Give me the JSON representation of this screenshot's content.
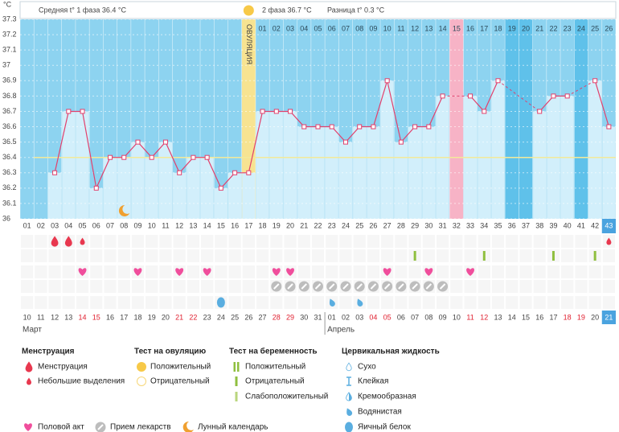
{
  "header": {
    "phase1": "Средняя t° 1 фаза 36.4 °C",
    "phase2": "2 фаза 36.7 °C",
    "difference": "Разница t° 0.3 °C"
  },
  "chart_data": {
    "type": "line",
    "unit": "°C",
    "ovulation_label": "ОВУЛЯЦИЯ",
    "ovulation_day": 17,
    "highlight_day": 32,
    "categories": [
      "01",
      "02",
      "03",
      "04",
      "05",
      "06",
      "07",
      "08",
      "09",
      "10",
      "11",
      "12",
      "13",
      "14",
      "15",
      "16",
      "17",
      "18",
      "19",
      "20",
      "21",
      "22",
      "23",
      "24",
      "25",
      "26",
      "27",
      "28",
      "29",
      "30",
      "31",
      "32",
      "33",
      "34",
      "35",
      "36",
      "37",
      "38",
      "39",
      "40",
      "41",
      "42",
      "43"
    ],
    "top_labels": [
      null,
      null,
      null,
      null,
      null,
      null,
      null,
      null,
      null,
      null,
      null,
      null,
      null,
      null,
      null,
      null,
      null,
      "01",
      "02",
      "03",
      "04",
      "05",
      "06",
      "07",
      "08",
      "09",
      "10",
      "11",
      "12",
      "13",
      "14",
      "15",
      "16",
      "17",
      "18",
      "19",
      "20",
      "21",
      "22",
      "23",
      "24",
      "25",
      "26"
    ],
    "values": [
      null,
      null,
      36.3,
      36.7,
      36.7,
      36.2,
      36.4,
      36.4,
      36.5,
      36.4,
      36.5,
      36.3,
      36.4,
      36.4,
      36.2,
      36.3,
      36.3,
      36.7,
      36.7,
      36.7,
      36.6,
      36.6,
      36.6,
      36.5,
      36.6,
      36.6,
      36.9,
      36.5,
      36.6,
      36.6,
      36.8,
      null,
      36.8,
      36.7,
      36.9,
      null,
      null,
      36.7,
      36.8,
      36.8,
      null,
      36.9,
      36.6
    ],
    "ylim": [
      36,
      37.3
    ],
    "yticks": [
      36,
      36.1,
      36.2,
      36.3,
      36.4,
      36.5,
      36.6,
      36.7,
      36.8,
      36.9,
      37,
      37.1,
      37.2,
      37.3
    ],
    "coverline": 36.4,
    "grid": true,
    "dates": [
      "10",
      "11",
      "12",
      "13",
      "14",
      "15",
      "16",
      "17",
      "18",
      "19",
      "20",
      "21",
      "22",
      "23",
      "24",
      "25",
      "26",
      "27",
      "28",
      "29",
      "30",
      "31",
      "01",
      "02",
      "03",
      "04",
      "05",
      "06",
      "07",
      "08",
      "09",
      "10",
      "11",
      "12",
      "13",
      "14",
      "15",
      "16",
      "17",
      "18",
      "19",
      "20",
      "21"
    ],
    "weekend": [
      false,
      false,
      false,
      false,
      true,
      true,
      false,
      false,
      false,
      false,
      false,
      true,
      true,
      false,
      false,
      false,
      false,
      false,
      true,
      true,
      false,
      false,
      false,
      false,
      false,
      true,
      true,
      false,
      false,
      false,
      false,
      false,
      true,
      true,
      false,
      false,
      false,
      false,
      false,
      true,
      true,
      false,
      false
    ],
    "months": [
      {
        "label": "Март",
        "day": 1
      },
      {
        "label": "Апрель",
        "day": 23
      }
    ],
    "moon_day": 8,
    "symbol_rows": [
      [
        {
          "day": 3,
          "kind": "menstruation"
        },
        {
          "day": 4,
          "kind": "menstruation"
        },
        {
          "day": 5,
          "kind": "spotting"
        },
        {
          "day": 43,
          "kind": "spotting"
        }
      ],
      [
        {
          "day": 29,
          "kind": "preg-neg"
        },
        {
          "day": 34,
          "kind": "preg-neg"
        },
        {
          "day": 39,
          "kind": "preg-neg"
        },
        {
          "day": 42,
          "kind": "preg-neg"
        }
      ],
      [
        {
          "day": 5,
          "kind": "sex"
        },
        {
          "day": 9,
          "kind": "sex"
        },
        {
          "day": 12,
          "kind": "sex"
        },
        {
          "day": 14,
          "kind": "sex"
        },
        {
          "day": 19,
          "kind": "sex"
        },
        {
          "day": 20,
          "kind": "sex"
        },
        {
          "day": 27,
          "kind": "sex"
        },
        {
          "day": 30,
          "kind": "sex"
        },
        {
          "day": 33,
          "kind": "sex"
        }
      ],
      [
        {
          "day": 19,
          "kind": "pill"
        },
        {
          "day": 20,
          "kind": "pill"
        },
        {
          "day": 21,
          "kind": "pill"
        },
        {
          "day": 22,
          "kind": "pill"
        },
        {
          "day": 23,
          "kind": "pill"
        },
        {
          "day": 24,
          "kind": "pill"
        },
        {
          "day": 25,
          "kind": "pill"
        },
        {
          "day": 26,
          "kind": "pill"
        },
        {
          "day": 27,
          "kind": "pill"
        },
        {
          "day": 28,
          "kind": "pill"
        },
        {
          "day": 29,
          "kind": "pill"
        },
        {
          "day": 30,
          "kind": "pill"
        },
        {
          "day": 31,
          "kind": "pill"
        }
      ],
      [
        {
          "day": 15,
          "kind": "cf-eggwhite"
        },
        {
          "day": 23,
          "kind": "cf-watery"
        },
        {
          "day": 25,
          "kind": "cf-watery"
        }
      ]
    ]
  },
  "legend": {
    "groups": [
      {
        "title": "Менструация",
        "items": [
          {
            "label": "Менструация",
            "icon": "menstruation"
          },
          {
            "label": "Небольшие выделения",
            "icon": "spotting"
          }
        ]
      },
      {
        "title": "Тест на овуляцию",
        "items": [
          {
            "label": "Положительный",
            "icon": "ovu-pos"
          },
          {
            "label": "Отрицательный",
            "icon": "ovu-neg"
          }
        ]
      },
      {
        "title": "Тест на беременность",
        "items": [
          {
            "label": "Положительный",
            "icon": "preg-pos"
          },
          {
            "label": "Отрицательный",
            "icon": "preg-neg"
          },
          {
            "label": "Слабоположительный",
            "icon": "preg-weak"
          }
        ]
      },
      {
        "title": "Цервикальная жидкость",
        "items": [
          {
            "label": "Сухо",
            "icon": "cf-dry"
          },
          {
            "label": "Клейкая",
            "icon": "cf-sticky"
          },
          {
            "label": "Кремообразная",
            "icon": "cf-creamy"
          },
          {
            "label": "Водянистая",
            "icon": "cf-watery"
          },
          {
            "label": "Яичный белок",
            "icon": "cf-eggwhite"
          }
        ]
      }
    ],
    "extras": [
      {
        "label": "Половой акт",
        "icon": "sex"
      },
      {
        "label": "Прием лекарств",
        "icon": "pill"
      },
      {
        "label": "Лунный календарь",
        "icon": "moon"
      }
    ]
  }
}
